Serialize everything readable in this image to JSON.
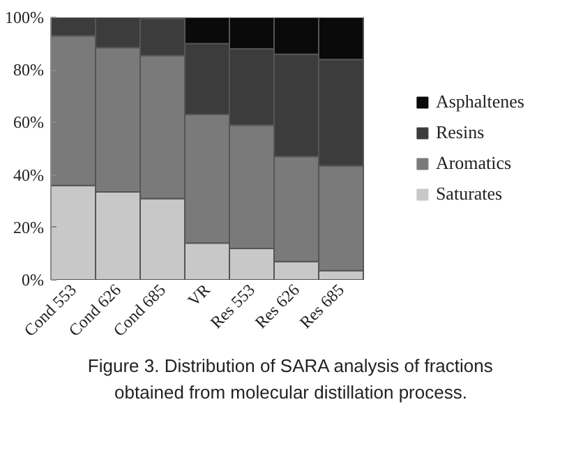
{
  "chart_data": {
    "type": "bar",
    "stacked": true,
    "categories": [
      "Cond 553",
      "Cond 626",
      "Cond 685",
      "VR",
      "Res 553",
      "Res 626",
      "Res 685"
    ],
    "series": [
      {
        "name": "Saturates",
        "color": "#c8c8c8",
        "values": [
          36,
          33.5,
          31,
          14,
          12,
          7,
          3.5
        ]
      },
      {
        "name": "Aromatics",
        "color": "#7a7a7a",
        "values": [
          57,
          55,
          54.5,
          49,
          47,
          40,
          40
        ]
      },
      {
        "name": "Resins",
        "color": "#3c3c3c",
        "values": [
          7,
          11.5,
          14,
          27,
          29,
          39,
          40.5
        ]
      },
      {
        "name": "Asphaltenes",
        "color": "#0a0a0a",
        "values": [
          0,
          0,
          0.5,
          10,
          12,
          14,
          16
        ]
      }
    ],
    "ylim": [
      0,
      100
    ],
    "yticks": [
      {
        "value": 0,
        "label": "0%"
      },
      {
        "value": 20,
        "label": "20%"
      },
      {
        "value": 40,
        "label": "40%"
      },
      {
        "value": 60,
        "label": "60%"
      },
      {
        "value": 80,
        "label": "80%"
      },
      {
        "value": 100,
        "label": "100%"
      }
    ],
    "legend": "right",
    "annotations": [
      "Figure 3. Distribution of SARA analysis of fractions obtained from molecular distillation process."
    ]
  }
}
